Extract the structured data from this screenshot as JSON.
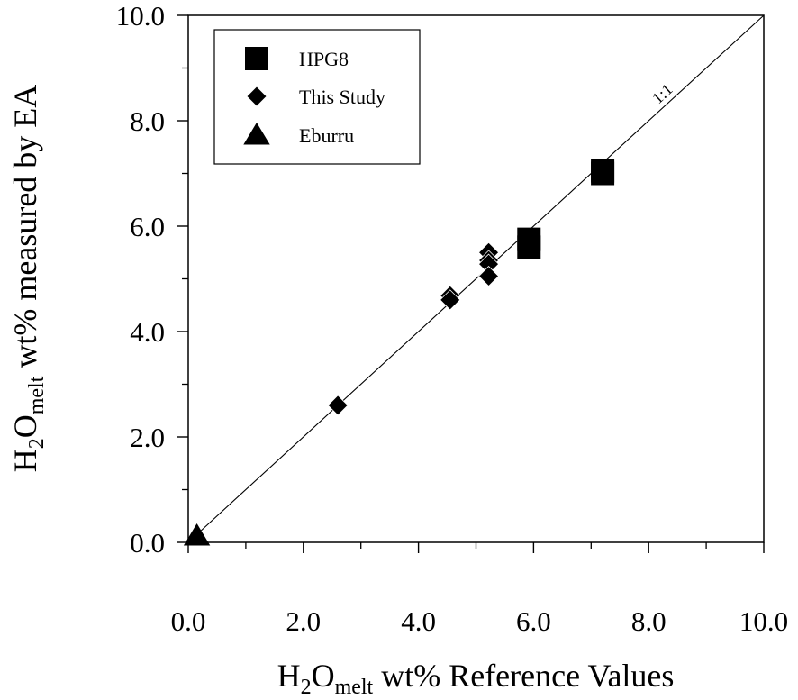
{
  "chart_data": {
    "type": "scatter",
    "xlabel": {
      "pre": "H",
      "sub1": "2",
      "mid": "O",
      "sub2": "melt",
      "post": " wt% Reference Values"
    },
    "ylabel": {
      "pre": "H",
      "sub1": "2",
      "mid": "O",
      "sub2": "melt",
      "post": "  wt% measured by EA"
    },
    "xlim": [
      0,
      10
    ],
    "ylim": [
      0,
      10
    ],
    "x_ticks": [
      0,
      2,
      4,
      6,
      8,
      10
    ],
    "y_ticks": [
      0,
      2,
      4,
      6,
      8,
      10
    ],
    "x_tick_labels": [
      "0.0",
      "2.0",
      "4.0",
      "6.0",
      "8.0",
      "10.0"
    ],
    "y_tick_labels": [
      "0.0",
      "2.0",
      "4.0",
      "6.0",
      "8.0",
      "10.0"
    ],
    "minor_step": 1,
    "grid": false,
    "legend_position": "top-left",
    "reference_line": {
      "label": "1:1",
      "x": [
        0,
        10
      ],
      "y": [
        0,
        10
      ]
    },
    "series": [
      {
        "name": "HPG8",
        "marker": "square",
        "x": [
          5.92,
          5.92,
          7.2,
          7.2
        ],
        "y": [
          5.75,
          5.6,
          7.05,
          7.0
        ]
      },
      {
        "name": "This Study",
        "marker": "diamond",
        "x": [
          2.6,
          4.55,
          4.55,
          5.22,
          5.22,
          5.22,
          5.22
        ],
        "y": [
          2.6,
          4.68,
          4.6,
          5.5,
          5.35,
          5.28,
          5.05
        ]
      },
      {
        "name": "Eburru",
        "marker": "triangle",
        "x": [
          0.15
        ],
        "y": [
          0.12
        ]
      }
    ]
  }
}
